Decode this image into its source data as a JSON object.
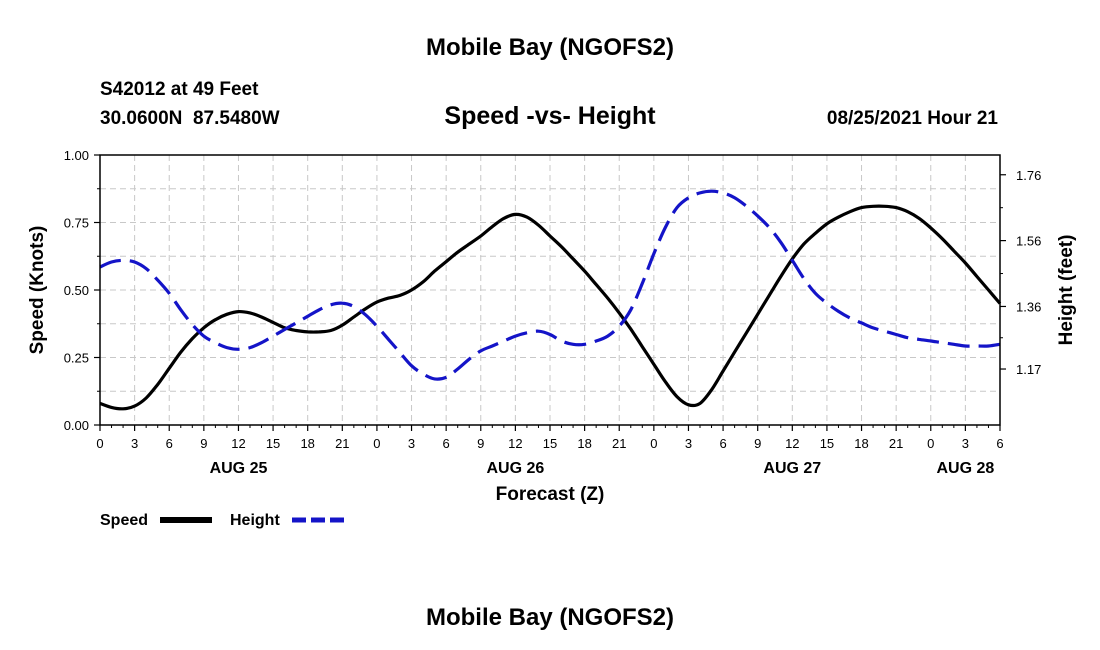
{
  "page": {
    "title": "Mobile Bay (NGOFS2)",
    "footer_title": "Mobile Bay (NGOFS2)",
    "station": "S42012 at 49 Feet",
    "coords": "30.0600N  87.5480W",
    "subtitle": "Speed -vs- Height",
    "datetime": "08/25/2021 Hour 21"
  },
  "chart_data": {
    "type": "line",
    "title": "Speed -vs- Height",
    "xlabel": "Forecast (Z)",
    "ylabel": "Speed (Knots)",
    "y2label": "Height (feet)",
    "xlim": [
      0,
      78
    ],
    "ylim": [
      0,
      1.0
    ],
    "y2lim": [
      1.0,
      1.82
    ],
    "x_ticks": [
      0,
      3,
      6,
      9,
      12,
      15,
      18,
      21,
      24,
      27,
      30,
      33,
      36,
      39,
      42,
      45,
      48,
      51,
      54,
      57,
      60,
      63,
      66,
      69,
      72,
      75,
      78
    ],
    "x_tick_labels": [
      "0",
      "3",
      "6",
      "9",
      "12",
      "15",
      "18",
      "21",
      "0",
      "3",
      "6",
      "9",
      "12",
      "15",
      "18",
      "21",
      "0",
      "3",
      "6",
      "9",
      "12",
      "15",
      "18",
      "21",
      "0",
      "3",
      "6"
    ],
    "date_labels": [
      {
        "x": 12,
        "label": "AUG 25"
      },
      {
        "x": 36,
        "label": "AUG 26"
      },
      {
        "x": 60,
        "label": "AUG 27"
      },
      {
        "x": 75,
        "label": "AUG 28"
      }
    ],
    "y_ticks": [
      0.0,
      0.25,
      0.5,
      0.75,
      1.0
    ],
    "y_tick_labels": [
      "0.00",
      "0.25",
      "0.50",
      "0.75",
      "1.00"
    ],
    "y2_ticks": [
      1.17,
      1.36,
      1.56,
      1.76
    ],
    "y2_tick_labels": [
      "1.17",
      "1.36",
      "1.56",
      "1.76"
    ],
    "grid": true,
    "legend_position": "bottom-left",
    "series": [
      {
        "name": "Speed",
        "axis": "left",
        "color": "#000000",
        "dash": "solid",
        "x": [
          0,
          1,
          2,
          3,
          4,
          5,
          6,
          7,
          8,
          9,
          10,
          11,
          12,
          13,
          14,
          15,
          16,
          17,
          18,
          19,
          20,
          21,
          22,
          23,
          24,
          25,
          26,
          27,
          28,
          29,
          30,
          31,
          32,
          33,
          34,
          35,
          36,
          37,
          38,
          39,
          40,
          41,
          42,
          43,
          44,
          45,
          46,
          47,
          48,
          49,
          50,
          51,
          52,
          53,
          54,
          55,
          56,
          57,
          58,
          59,
          60,
          61,
          62,
          63,
          64,
          65,
          66,
          67,
          68,
          69,
          70,
          71,
          72,
          73,
          74,
          75,
          76,
          77,
          78
        ],
        "values": [
          0.08,
          0.065,
          0.06,
          0.07,
          0.1,
          0.15,
          0.21,
          0.27,
          0.32,
          0.36,
          0.39,
          0.41,
          0.42,
          0.415,
          0.4,
          0.38,
          0.36,
          0.35,
          0.345,
          0.345,
          0.35,
          0.37,
          0.4,
          0.43,
          0.455,
          0.47,
          0.48,
          0.5,
          0.53,
          0.57,
          0.605,
          0.64,
          0.67,
          0.7,
          0.735,
          0.765,
          0.78,
          0.77,
          0.74,
          0.7,
          0.66,
          0.615,
          0.57,
          0.52,
          0.47,
          0.415,
          0.355,
          0.29,
          0.225,
          0.16,
          0.105,
          0.075,
          0.08,
          0.13,
          0.2,
          0.27,
          0.34,
          0.41,
          0.48,
          0.55,
          0.615,
          0.67,
          0.71,
          0.745,
          0.77,
          0.79,
          0.805,
          0.81,
          0.81,
          0.805,
          0.79,
          0.765,
          0.73,
          0.69,
          0.645,
          0.6,
          0.55,
          0.5,
          0.45
        ]
      },
      {
        "name": "Height",
        "axis": "right",
        "color": "#1414c8",
        "dash": "dashed",
        "x": [
          0,
          1,
          2,
          3,
          4,
          5,
          6,
          7,
          8,
          9,
          10,
          11,
          12,
          13,
          14,
          15,
          16,
          17,
          18,
          19,
          20,
          21,
          22,
          23,
          24,
          25,
          26,
          27,
          28,
          29,
          30,
          31,
          32,
          33,
          34,
          35,
          36,
          37,
          38,
          39,
          40,
          41,
          42,
          43,
          44,
          45,
          46,
          47,
          48,
          49,
          50,
          51,
          52,
          53,
          54,
          55,
          56,
          57,
          58,
          59,
          60,
          61,
          62,
          63,
          64,
          65,
          66,
          67,
          68,
          69,
          70,
          71,
          72,
          73,
          74,
          75,
          76,
          77,
          78
        ],
        "values": [
          1.48,
          1.495,
          1.5,
          1.495,
          1.475,
          1.44,
          1.4,
          1.35,
          1.305,
          1.27,
          1.25,
          1.235,
          1.23,
          1.235,
          1.25,
          1.27,
          1.29,
          1.31,
          1.33,
          1.35,
          1.365,
          1.37,
          1.36,
          1.335,
          1.3,
          1.26,
          1.22,
          1.18,
          1.155,
          1.14,
          1.145,
          1.17,
          1.2,
          1.225,
          1.24,
          1.255,
          1.27,
          1.28,
          1.285,
          1.275,
          1.255,
          1.245,
          1.245,
          1.255,
          1.27,
          1.3,
          1.35,
          1.43,
          1.52,
          1.6,
          1.66,
          1.69,
          1.705,
          1.71,
          1.705,
          1.69,
          1.665,
          1.635,
          1.6,
          1.555,
          1.5,
          1.445,
          1.4,
          1.37,
          1.345,
          1.325,
          1.31,
          1.295,
          1.285,
          1.275,
          1.265,
          1.26,
          1.255,
          1.25,
          1.245,
          1.24,
          1.24,
          1.24,
          1.245
        ]
      }
    ]
  }
}
